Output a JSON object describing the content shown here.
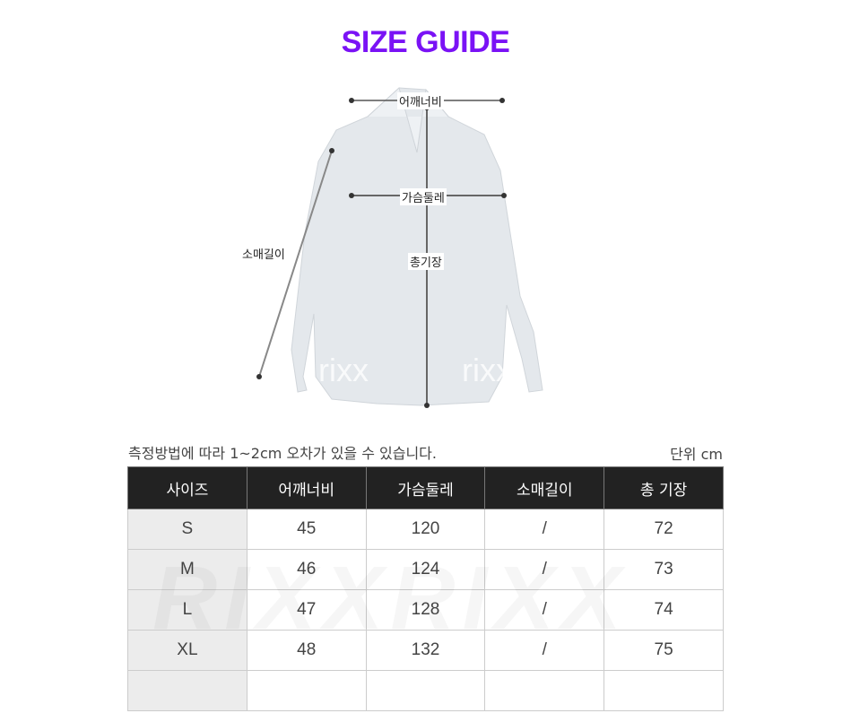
{
  "title": "SIZE GUIDE",
  "diagram": {
    "shoulder": "어깨너비",
    "chest": "가슴둘레",
    "sleeve": "소매길이",
    "length": "총기장",
    "watermark": "rixx"
  },
  "note": "측정방법에 따라 1~2cm 오차가 있을 수 있습니다.",
  "unit": "단위 cm",
  "table": {
    "headers": [
      "사이즈",
      "어깨너비",
      "가슴둘레",
      "소매길이",
      "총 기장"
    ],
    "rows": [
      [
        "S",
        "45",
        "120",
        "/",
        "72"
      ],
      [
        "M",
        "46",
        "124",
        "/",
        "73"
      ],
      [
        "L",
        "47",
        "128",
        "/",
        "74"
      ],
      [
        "XL",
        "48",
        "132",
        "/",
        "75"
      ],
      [
        "",
        "",
        "",
        "",
        ""
      ]
    ]
  },
  "table_watermark": "RIXXRIXX"
}
